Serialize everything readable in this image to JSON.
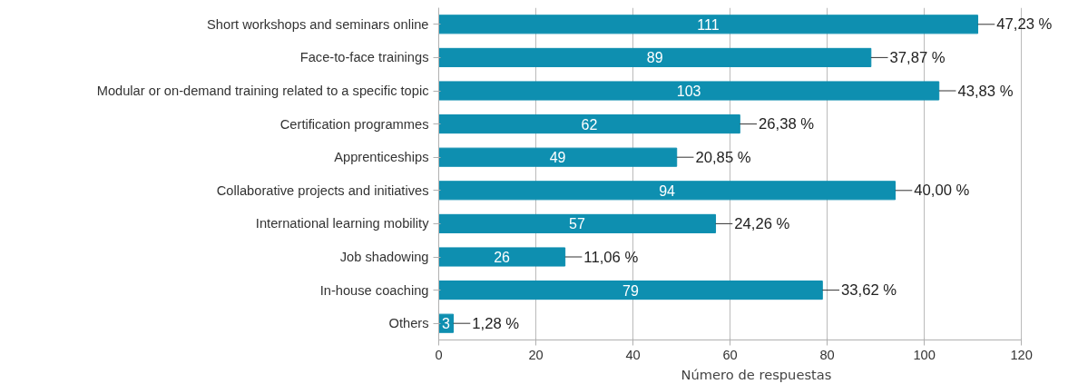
{
  "chart_data": {
    "type": "bar",
    "orientation": "horizontal",
    "xlabel": "Número de respuestas",
    "categories": [
      "Short workshops and seminars online",
      "Face-to-face trainings",
      "Modular or on-demand training related to a specific topic",
      "Certification programmes",
      "Apprenticeships",
      "Collaborative projects and initiatives",
      "International learning mobility",
      "Job shadowing",
      "In-house coaching",
      "Others"
    ],
    "values": [
      111,
      89,
      103,
      62,
      49,
      94,
      57,
      26,
      79,
      3
    ],
    "color": "#0e8fb0",
    "data_labels": true,
    "annotations": [
      {
        "text": "47,23 %",
        "x": 111,
        "y": "Short workshops and seminars online"
      },
      {
        "text": "37,87 %",
        "x": 89,
        "y": "Face-to-face trainings"
      },
      {
        "text": "43,83 %",
        "x": 103,
        "y": "Modular or on-demand training related to a specific topic"
      },
      {
        "text": "26,38 %",
        "x": 62,
        "y": "Certification programmes"
      },
      {
        "text": "20,85 %",
        "x": 49,
        "y": "Apprenticeships"
      },
      {
        "text": "40,00 %",
        "x": 94,
        "y": "Collaborative projects and initiatives"
      },
      {
        "text": "24,26 %",
        "x": 57,
        "y": "International learning mobility"
      },
      {
        "text": "11,06 %",
        "x": 26,
        "y": "Job shadowing"
      },
      {
        "text": "33,62 %",
        "x": 79,
        "y": "In-house coaching"
      },
      {
        "text": "1,28 %",
        "x": 3,
        "y": "Others"
      }
    ],
    "xlim": [
      0,
      120
    ],
    "xticks": [
      0,
      20,
      40,
      60,
      80,
      100,
      120
    ],
    "grid": "x"
  }
}
